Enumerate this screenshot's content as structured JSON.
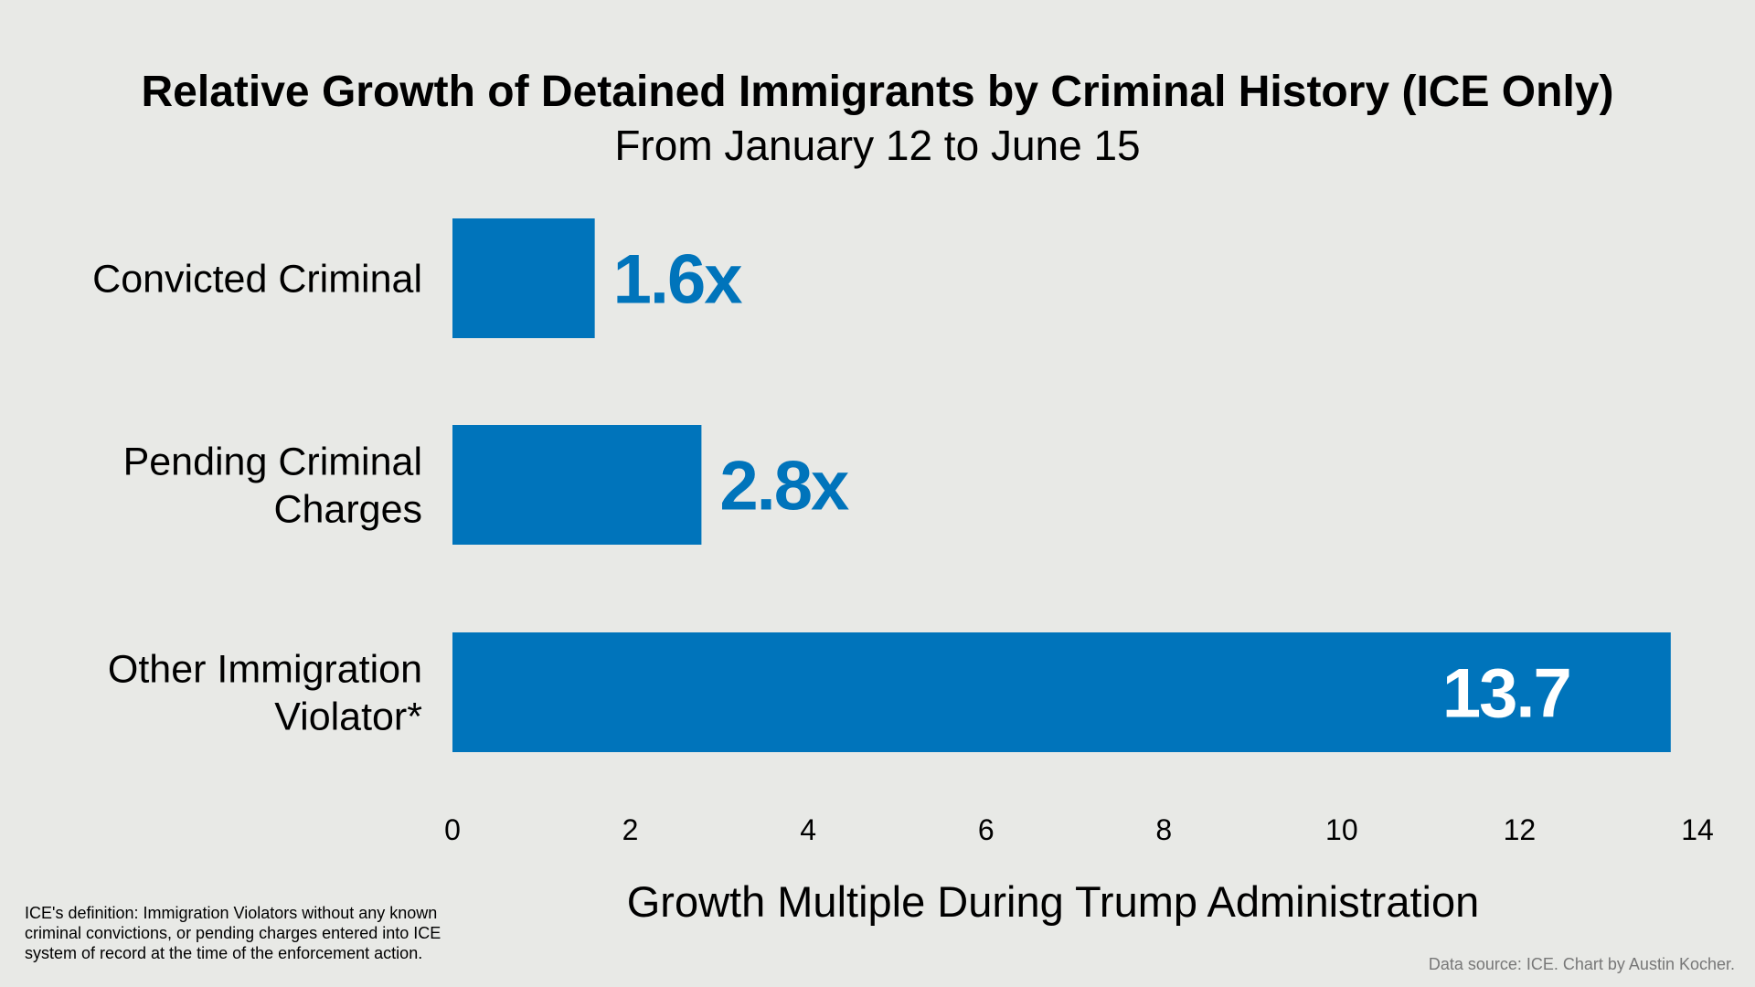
{
  "chart_data": {
    "type": "bar",
    "orientation": "horizontal",
    "title": "Relative Growth of Detained Immigrants by Criminal History (ICE Only)",
    "subtitle": "From January 12 to June 15",
    "categories": [
      [
        "Convicted Criminal"
      ],
      [
        "Pending Criminal",
        "Charges"
      ],
      [
        "Other Immigration",
        "Violator*"
      ]
    ],
    "values": [
      1.6,
      2.8,
      13.7
    ],
    "data_labels": [
      "1.6x",
      "2.8x",
      "13.7"
    ],
    "data_label_inside": [
      false,
      false,
      true
    ],
    "xlabel": "Growth Multiple During Trump Administration",
    "ylabel": "",
    "xlim": [
      0,
      14
    ],
    "xticks": [
      0,
      2,
      4,
      6,
      8,
      10,
      12,
      14
    ],
    "grid": false,
    "bar_color": "#0074bb",
    "label_color": "#0074bb",
    "inside_label_color": "#ffffff"
  },
  "footnote": [
    "ICE's definition: Immigration Violators without any known",
    "criminal convictions, or pending charges entered into ICE",
    "system of record at the time of the enforcement action."
  ],
  "source": "Data source: ICE. Chart by Austin Kocher."
}
